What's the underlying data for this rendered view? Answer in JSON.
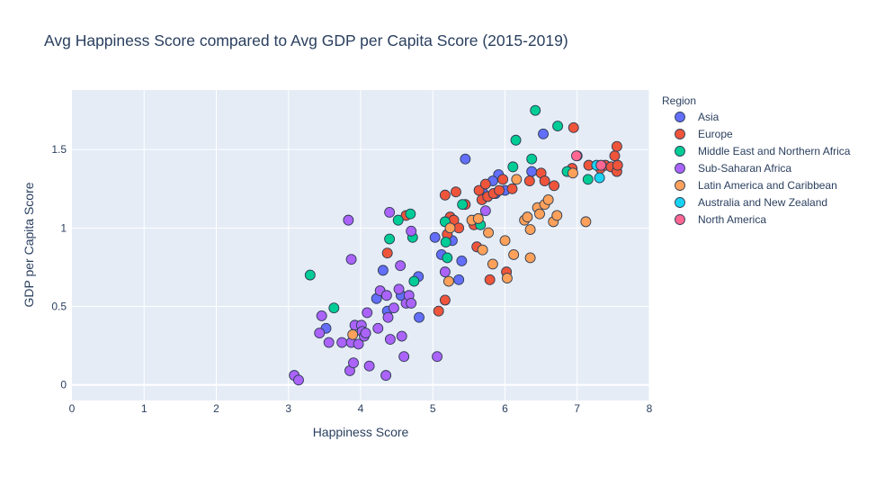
{
  "chart_data": {
    "type": "scatter",
    "title": "Avg Happiness Score compared to Avg GDP per Capita Score (2015-2019)",
    "xlabel": "Happiness Score",
    "ylabel": "GDP per Capita Score",
    "xlim": [
      0,
      8
    ],
    "ylim": [
      -0.1,
      1.88
    ],
    "xticks": [
      0,
      1,
      2,
      3,
      4,
      5,
      6,
      7,
      8
    ],
    "yticks": [
      0,
      0.5,
      1,
      1.5
    ],
    "ytick_labels": [
      "0",
      "0.5",
      "1",
      "1.5"
    ],
    "grid": true,
    "legend_title": "Region",
    "legend_position": "right",
    "series": [
      {
        "name": "Asia",
        "color": "#636efa",
        "points": [
          [
            3.52,
            0.36
          ],
          [
            4.22,
            0.55
          ],
          [
            4.31,
            0.73
          ],
          [
            4.37,
            0.47
          ],
          [
            4.56,
            0.57
          ],
          [
            4.8,
            0.69
          ],
          [
            4.81,
            0.43
          ],
          [
            5.03,
            0.94
          ],
          [
            5.12,
            0.83
          ],
          [
            5.27,
            0.92
          ],
          [
            5.36,
            0.67
          ],
          [
            5.4,
            0.79
          ],
          [
            5.45,
            1.44
          ],
          [
            5.7,
            1.22
          ],
          [
            5.87,
            1.22
          ],
          [
            5.91,
            1.34
          ],
          [
            6.0,
            1.24
          ],
          [
            6.37,
            1.36
          ],
          [
            6.53,
            1.6
          ],
          [
            5.83,
            1.3
          ]
        ]
      },
      {
        "name": "Europe",
        "color": "#ef553b",
        "points": [
          [
            4.37,
            0.84
          ],
          [
            4.63,
            1.08
          ],
          [
            5.08,
            0.47
          ],
          [
            5.17,
            1.21
          ],
          [
            5.17,
            0.54
          ],
          [
            5.2,
            0.96
          ],
          [
            5.24,
            1.07
          ],
          [
            5.29,
            1.05
          ],
          [
            5.32,
            1.23
          ],
          [
            5.36,
            1.0
          ],
          [
            5.45,
            1.15
          ],
          [
            5.57,
            1.02
          ],
          [
            5.61,
            0.88
          ],
          [
            5.64,
            1.24
          ],
          [
            5.68,
            1.18
          ],
          [
            5.73,
            1.28
          ],
          [
            5.76,
            1.2
          ],
          [
            5.79,
            0.67
          ],
          [
            5.84,
            1.22
          ],
          [
            5.92,
            1.24
          ],
          [
            5.97,
            1.31
          ],
          [
            6.02,
            0.72
          ],
          [
            6.1,
            1.25
          ],
          [
            6.34,
            1.3
          ],
          [
            6.5,
            1.35
          ],
          [
            6.55,
            1.3
          ],
          [
            6.68,
            1.27
          ],
          [
            6.93,
            1.38
          ],
          [
            6.95,
            1.64
          ],
          [
            7.0,
            1.46
          ],
          [
            7.16,
            1.4
          ],
          [
            7.32,
            1.38
          ],
          [
            7.39,
            1.4
          ],
          [
            7.47,
            1.39
          ],
          [
            7.52,
            1.46
          ],
          [
            7.55,
            1.52
          ],
          [
            7.55,
            1.36
          ],
          [
            7.56,
            1.4
          ]
        ]
      },
      {
        "name": "Middle East and Northern Africa",
        "color": "#00cc96",
        "points": [
          [
            3.3,
            0.7
          ],
          [
            3.63,
            0.49
          ],
          [
            4.4,
            0.93
          ],
          [
            4.52,
            1.05
          ],
          [
            4.69,
            1.09
          ],
          [
            4.72,
            0.94
          ],
          [
            4.74,
            0.66
          ],
          [
            5.17,
            1.04
          ],
          [
            5.18,
            0.91
          ],
          [
            5.2,
            0.81
          ],
          [
            5.41,
            1.15
          ],
          [
            5.66,
            1.02
          ],
          [
            6.11,
            1.39
          ],
          [
            6.15,
            1.56
          ],
          [
            6.37,
            1.44
          ],
          [
            6.42,
            1.75
          ],
          [
            6.73,
            1.65
          ],
          [
            6.86,
            1.36
          ],
          [
            7.15,
            1.31
          ]
        ]
      },
      {
        "name": "Sub-Saharan Africa",
        "color": "#ab63fa",
        "points": [
          [
            3.08,
            0.06
          ],
          [
            3.14,
            0.03
          ],
          [
            3.43,
            0.33
          ],
          [
            3.46,
            0.44
          ],
          [
            3.56,
            0.27
          ],
          [
            3.74,
            0.27
          ],
          [
            3.83,
            1.05
          ],
          [
            3.85,
            0.09
          ],
          [
            3.87,
            0.8
          ],
          [
            3.87,
            0.27
          ],
          [
            3.9,
            0.14
          ],
          [
            3.92,
            0.38
          ],
          [
            3.97,
            0.26
          ],
          [
            4.01,
            0.38
          ],
          [
            4.02,
            0.34
          ],
          [
            4.05,
            0.31
          ],
          [
            4.07,
            0.33
          ],
          [
            4.09,
            0.46
          ],
          [
            4.12,
            0.12
          ],
          [
            4.24,
            0.36
          ],
          [
            4.27,
            0.6
          ],
          [
            4.35,
            0.06
          ],
          [
            4.36,
            0.57
          ],
          [
            4.38,
            0.43
          ],
          [
            4.4,
            1.1
          ],
          [
            4.41,
            0.29
          ],
          [
            4.46,
            0.49
          ],
          [
            4.53,
            0.61
          ],
          [
            4.55,
            0.76
          ],
          [
            4.57,
            0.31
          ],
          [
            4.6,
            0.18
          ],
          [
            4.63,
            0.52
          ],
          [
            4.67,
            0.57
          ],
          [
            4.7,
            0.98
          ],
          [
            4.7,
            0.52
          ],
          [
            5.06,
            0.18
          ],
          [
            5.17,
            0.72
          ],
          [
            5.73,
            1.11
          ]
        ]
      },
      {
        "name": "Latin America and Caribbean",
        "color": "#ffa15a",
        "points": [
          [
            3.89,
            0.32
          ],
          [
            5.22,
            0.66
          ],
          [
            5.24,
            1.0
          ],
          [
            5.54,
            1.05
          ],
          [
            5.63,
            1.06
          ],
          [
            5.69,
            0.86
          ],
          [
            5.77,
            0.97
          ],
          [
            5.83,
            0.77
          ],
          [
            6.0,
            0.92
          ],
          [
            6.03,
            0.68
          ],
          [
            6.12,
            0.83
          ],
          [
            6.16,
            1.31
          ],
          [
            6.27,
            1.05
          ],
          [
            6.31,
            1.07
          ],
          [
            6.35,
            0.81
          ],
          [
            6.35,
            0.99
          ],
          [
            6.45,
            1.13
          ],
          [
            6.48,
            1.09
          ],
          [
            6.55,
            1.15
          ],
          [
            6.6,
            1.18
          ],
          [
            6.67,
            1.04
          ],
          [
            6.72,
            1.08
          ],
          [
            6.94,
            1.35
          ],
          [
            7.12,
            1.04
          ]
        ]
      },
      {
        "name": "Australia and New Zealand",
        "color": "#19d3f3",
        "points": [
          [
            7.27,
            1.4
          ],
          [
            7.31,
            1.32
          ]
        ]
      },
      {
        "name": "North America",
        "color": "#ff6692",
        "points": [
          [
            6.99,
            1.46
          ],
          [
            7.33,
            1.4
          ]
        ]
      }
    ]
  }
}
